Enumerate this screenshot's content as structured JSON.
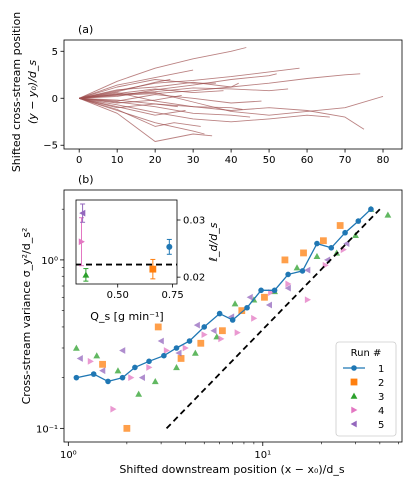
{
  "chart_data": [
    {
      "panel": "(a)",
      "type": "line",
      "ylabel_line1": "Shifted cross-stream position",
      "ylabel_line2": "(y − y₀)/d_s",
      "xlim": [
        -4,
        85
      ],
      "ylim": [
        -5.4,
        6.2
      ],
      "xticks": [
        0,
        10,
        20,
        30,
        40,
        50,
        60,
        70,
        80
      ],
      "yticks": [
        -5,
        0,
        5
      ],
      "line_color": "#9e4f4f",
      "series": [
        {
          "x": [
            0,
            10,
            20,
            30,
            40,
            44
          ],
          "y": [
            0,
            1.8,
            3.2,
            4.2,
            5.0,
            5.4
          ]
        },
        {
          "x": [
            0,
            10,
            20,
            30,
            40,
            50,
            58
          ],
          "y": [
            0,
            0.8,
            1.6,
            1.9,
            2.3,
            2.8,
            3.2
          ]
        },
        {
          "x": [
            0,
            10,
            20,
            30,
            40,
            50,
            60,
            70,
            80
          ],
          "y": [
            0,
            0.4,
            0.6,
            -0.4,
            -1.4,
            -1.8,
            -1.4,
            -1.0,
            0.2
          ]
        },
        {
          "x": [
            0,
            10,
            20,
            30,
            40,
            50,
            60,
            70,
            75
          ],
          "y": [
            0,
            -0.2,
            -0.6,
            -0.9,
            -1.3,
            -1.0,
            -1.3,
            -2.0,
            -3.3
          ]
        },
        {
          "x": [
            0,
            10,
            20,
            30,
            33
          ],
          "y": [
            0,
            -1.3,
            -2.6,
            -3.5,
            -3.8
          ]
        },
        {
          "x": [
            0,
            10,
            20,
            30,
            35
          ],
          "y": [
            0,
            -1.6,
            -4.6,
            -3.8,
            -4.0
          ]
        },
        {
          "x": [
            0,
            10,
            20,
            25,
            32
          ],
          "y": [
            0,
            -1.2,
            -3.0,
            -2.6,
            -3.0
          ]
        },
        {
          "x": [
            0,
            10,
            20,
            30,
            40,
            42
          ],
          "y": [
            0,
            0.9,
            1.2,
            1.7,
            1.2,
            1.6
          ]
        },
        {
          "x": [
            0,
            10,
            20,
            30,
            38
          ],
          "y": [
            0,
            0.5,
            1.0,
            0.6,
            0.8
          ]
        },
        {
          "x": [
            0,
            10,
            20,
            30,
            40,
            45
          ],
          "y": [
            0,
            -0.4,
            -0.9,
            -1.6,
            -1.8,
            -2.0
          ]
        },
        {
          "x": [
            0,
            10,
            20,
            30,
            40,
            50,
            60,
            66
          ],
          "y": [
            0,
            -0.7,
            -1.5,
            -2.2,
            -2.5,
            -2.2,
            -1.8,
            -2.0
          ]
        },
        {
          "x": [
            0,
            10,
            20,
            30,
            36
          ],
          "y": [
            0,
            1.2,
            2.0,
            1.6,
            1.6
          ]
        },
        {
          "x": [
            0,
            10,
            20,
            30
          ],
          "y": [
            0,
            1.4,
            2.2,
            3.0
          ]
        },
        {
          "x": [
            0,
            10,
            20,
            30,
            40,
            48
          ],
          "y": [
            0,
            -0.3,
            0.4,
            0.0,
            -0.5,
            -0.3
          ]
        },
        {
          "x": [
            0,
            10,
            20,
            28
          ],
          "y": [
            0,
            -0.9,
            -1.8,
            -1.3
          ]
        },
        {
          "x": [
            0,
            10,
            20,
            30,
            40,
            50,
            52
          ],
          "y": [
            0,
            0.2,
            0.9,
            1.4,
            2.0,
            2.4,
            2.6
          ]
        },
        {
          "x": [
            0,
            10,
            20,
            27
          ],
          "y": [
            0,
            -0.5,
            -0.2,
            0.3
          ]
        },
        {
          "x": [
            0,
            10,
            20,
            30,
            40,
            43
          ],
          "y": [
            0,
            0.6,
            -0.3,
            -0.9,
            -1.0,
            -1.2
          ]
        },
        {
          "x": [
            0,
            10,
            20,
            30,
            40,
            50,
            55
          ],
          "y": [
            0,
            0.4,
            0.7,
            1.1,
            1.0,
            0.8,
            1.0
          ]
        },
        {
          "x": [
            0,
            10,
            20,
            26
          ],
          "y": [
            0,
            -1.0,
            -0.6,
            -0.9
          ]
        },
        {
          "x": [
            0,
            10,
            20,
            30,
            40,
            50,
            60,
            70,
            74
          ],
          "y": [
            0,
            0.3,
            0.5,
            0.8,
            1.2,
            1.6,
            2.1,
            2.5,
            2.6
          ]
        },
        {
          "x": [
            0,
            10,
            20,
            24
          ],
          "y": [
            0,
            0.7,
            1.7,
            2.0
          ]
        }
      ]
    },
    {
      "panel": "(b)",
      "type": "scatter",
      "xscale": "log",
      "yscale": "log",
      "xlabel": "Shifted downstream position  (x − x₀)/d_s",
      "ylabel": "Cross-stream variance  σ_y²/d_s²",
      "xlim": [
        0.95,
        52
      ],
      "ylim": [
        0.083,
        2.6
      ],
      "xticks": [
        1,
        10
      ],
      "xtick_labels": [
        "10⁰",
        "10¹"
      ],
      "yticks": [
        0.1,
        1
      ],
      "ytick_labels": [
        "10⁻¹",
        "10⁰"
      ],
      "grid": false,
      "legend_title": "Run #",
      "legend_position": "lower-right",
      "reference_line": {
        "style": "dashed",
        "color": "#000000",
        "x": [
          3.2,
          40
        ],
        "y": [
          0.1,
          2.0
        ]
      },
      "series": [
        {
          "name": "1",
          "marker": "circle",
          "color": "#1f77b4",
          "connected": true,
          "x": [
            1.1,
            1.35,
            1.6,
            1.9,
            2.2,
            2.6,
            3.1,
            3.6,
            4.2,
            5.0,
            6.0,
            7.0,
            8.3,
            9.8,
            11.5,
            13.5,
            16.0,
            19.0,
            22.5,
            26.5,
            31.0,
            36.0
          ],
          "y": [
            0.2,
            0.21,
            0.19,
            0.2,
            0.23,
            0.25,
            0.27,
            0.3,
            0.33,
            0.4,
            0.48,
            0.44,
            0.52,
            0.66,
            0.66,
            0.82,
            0.86,
            1.25,
            1.18,
            1.45,
            1.7,
            2.0
          ]
        },
        {
          "name": "2",
          "marker": "square",
          "color": "#ff7f0e",
          "x": [
            1.5,
            2.0,
            2.9,
            3.8,
            4.8,
            6.2,
            7.8,
            10.2,
            13.0,
            16.2,
            20.5,
            25.0
          ],
          "y": [
            0.24,
            0.1,
            0.4,
            0.26,
            0.32,
            0.38,
            0.5,
            0.6,
            1.0,
            1.1,
            1.3,
            1.6
          ]
        },
        {
          "name": "3",
          "marker": "triangle-up",
          "color": "#2ca02c",
          "x": [
            1.1,
            1.4,
            1.8,
            2.3,
            2.8,
            3.6,
            4.5,
            5.8,
            7.2,
            9.0,
            11.5,
            15.0,
            19.0,
            24.0,
            30.0,
            36.0,
            44.0
          ],
          "y": [
            0.3,
            0.27,
            0.22,
            0.16,
            0.19,
            0.23,
            0.28,
            0.35,
            0.55,
            0.58,
            0.65,
            0.9,
            1.05,
            1.1,
            1.4,
            2.0,
            1.85
          ]
        },
        {
          "name": "4",
          "marker": "triangle-right",
          "color": "#e377c2",
          "x": [
            1.3,
            1.7,
            2.1,
            2.6,
            3.2,
            4.0,
            5.0,
            6.1,
            7.4,
            9.0,
            11.0,
            13.5,
            17.0,
            21.0,
            26.0
          ],
          "y": [
            0.25,
            0.13,
            0.2,
            0.23,
            0.29,
            0.3,
            0.36,
            0.34,
            0.37,
            0.45,
            0.64,
            0.72,
            0.58,
            0.93,
            1.15
          ]
        },
        {
          "name": "5",
          "marker": "triangle-left",
          "color": "#9467bd",
          "x": [
            1.15,
            1.5,
            1.9,
            2.4,
            3.0,
            3.7,
            4.6,
            5.6,
            6.9,
            8.6,
            10.8,
            13.5,
            17.0,
            21.5,
            27.0
          ],
          "y": [
            0.26,
            0.22,
            0.29,
            0.2,
            0.33,
            0.28,
            0.41,
            0.38,
            0.46,
            0.6,
            0.54,
            0.68,
            0.87,
            1.0,
            1.25
          ]
        }
      ]
    },
    {
      "panel": "inset",
      "type": "scatter",
      "xlabel": "Q_s  [g min⁻¹]",
      "ylabel": "ℓ_d/d_s",
      "xlim": [
        0.31,
        0.77
      ],
      "ylim": [
        0.0188,
        0.0335
      ],
      "xticks": [
        0.5,
        0.75
      ],
      "xtick_labels": [
        "0.50",
        "0.75"
      ],
      "yticks": [
        0.02,
        0.03
      ],
      "ytick_labels": [
        "0.02",
        "0.03"
      ],
      "mean_line": 0.0222,
      "points": [
        {
          "name": "1",
          "x": 0.735,
          "y": 0.0253,
          "err": 0.0013,
          "marker": "circle",
          "color": "#1f77b4"
        },
        {
          "name": "2",
          "x": 0.66,
          "y": 0.0214,
          "err": 0.0017,
          "marker": "square",
          "color": "#ff7f0e"
        },
        {
          "name": "3",
          "x": 0.355,
          "y": 0.0204,
          "err": 0.0011,
          "marker": "triangle-up",
          "color": "#2ca02c"
        },
        {
          "name": "4",
          "x": 0.335,
          "y": 0.0262,
          "err": 0.0042,
          "marker": "triangle-right",
          "color": "#e377c2"
        },
        {
          "name": "5",
          "x": 0.34,
          "y": 0.0312,
          "err": 0.0016,
          "marker": "triangle-left",
          "color": "#9467bd"
        }
      ]
    }
  ]
}
